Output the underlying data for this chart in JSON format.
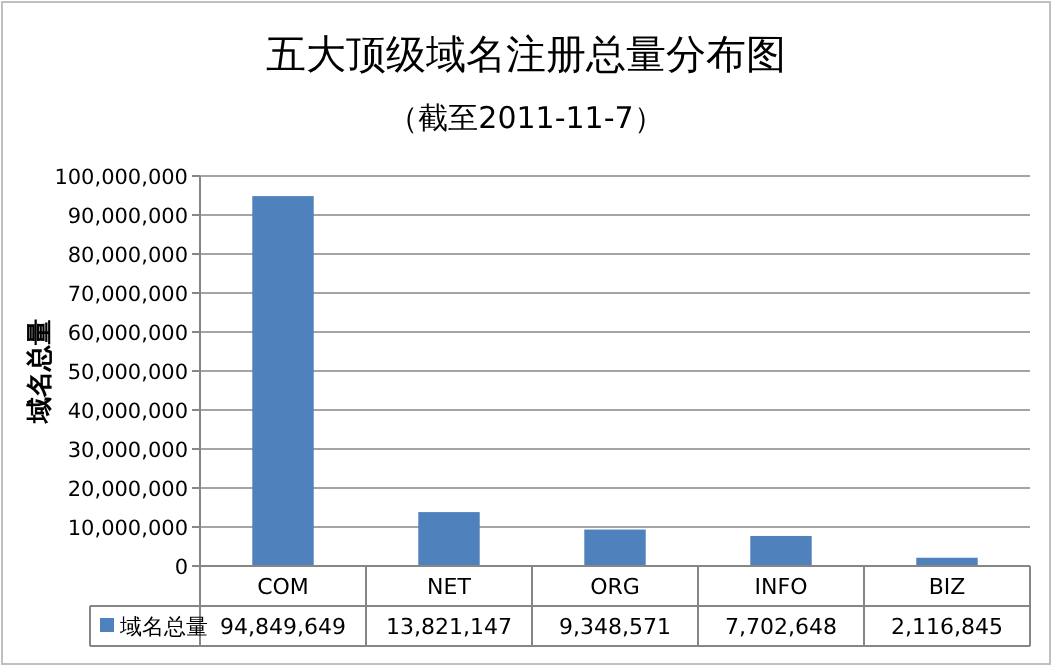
{
  "chart_data": {
    "type": "bar",
    "title": "五大顶级域名注册总量分布图",
    "subtitle": "（截至2011-11-7）",
    "ylabel": "域名总量",
    "categories": [
      "COM",
      "NET",
      "ORG",
      "INFO",
      "BIZ"
    ],
    "series": [
      {
        "name": "域名总量",
        "color": "#4f81bd",
        "values": [
          94849649,
          13821147,
          9348571,
          7702648,
          2116845
        ],
        "value_labels": [
          "94,849,649",
          "13,821,147",
          "9,348,571",
          "7,702,648",
          "2,116,845"
        ]
      }
    ],
    "ylim": [
      0,
      100000000
    ],
    "yticks": [
      {
        "value": 0,
        "label": "0"
      },
      {
        "value": 10000000,
        "label": "10,000,000"
      },
      {
        "value": 20000000,
        "label": "20,000,000"
      },
      {
        "value": 30000000,
        "label": "30,000,000"
      },
      {
        "value": 40000000,
        "label": "40,000,000"
      },
      {
        "value": 50000000,
        "label": "50,000,000"
      },
      {
        "value": 60000000,
        "label": "60,000,000"
      },
      {
        "value": 70000000,
        "label": "70,000,000"
      },
      {
        "value": 80000000,
        "label": "80,000,000"
      },
      {
        "value": 90000000,
        "label": "90,000,000"
      },
      {
        "value": 100000000,
        "label": "100,000,000"
      }
    ],
    "grid": "y",
    "legend": "bottom"
  }
}
